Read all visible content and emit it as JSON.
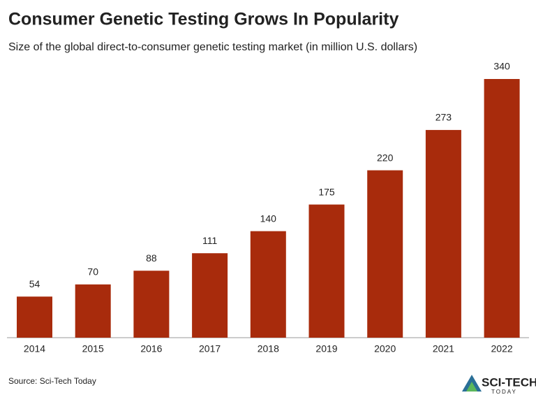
{
  "chart_data": {
    "type": "bar",
    "title": "Consumer Genetic Testing Grows In Popularity",
    "subtitle": "Size of the global direct-to-consumer genetic testing market (in million U.S. dollars)",
    "categories": [
      "2014",
      "2015",
      "2016",
      "2017",
      "2018",
      "2019",
      "2020",
      "2021",
      "2022"
    ],
    "values": [
      54,
      70,
      88,
      111,
      140,
      175,
      220,
      273,
      340
    ],
    "color": "#a82b0c",
    "source": "Source: Sci-Tech Today",
    "logo": {
      "name": "SCI-TECH",
      "tagline": "TODAY"
    }
  }
}
